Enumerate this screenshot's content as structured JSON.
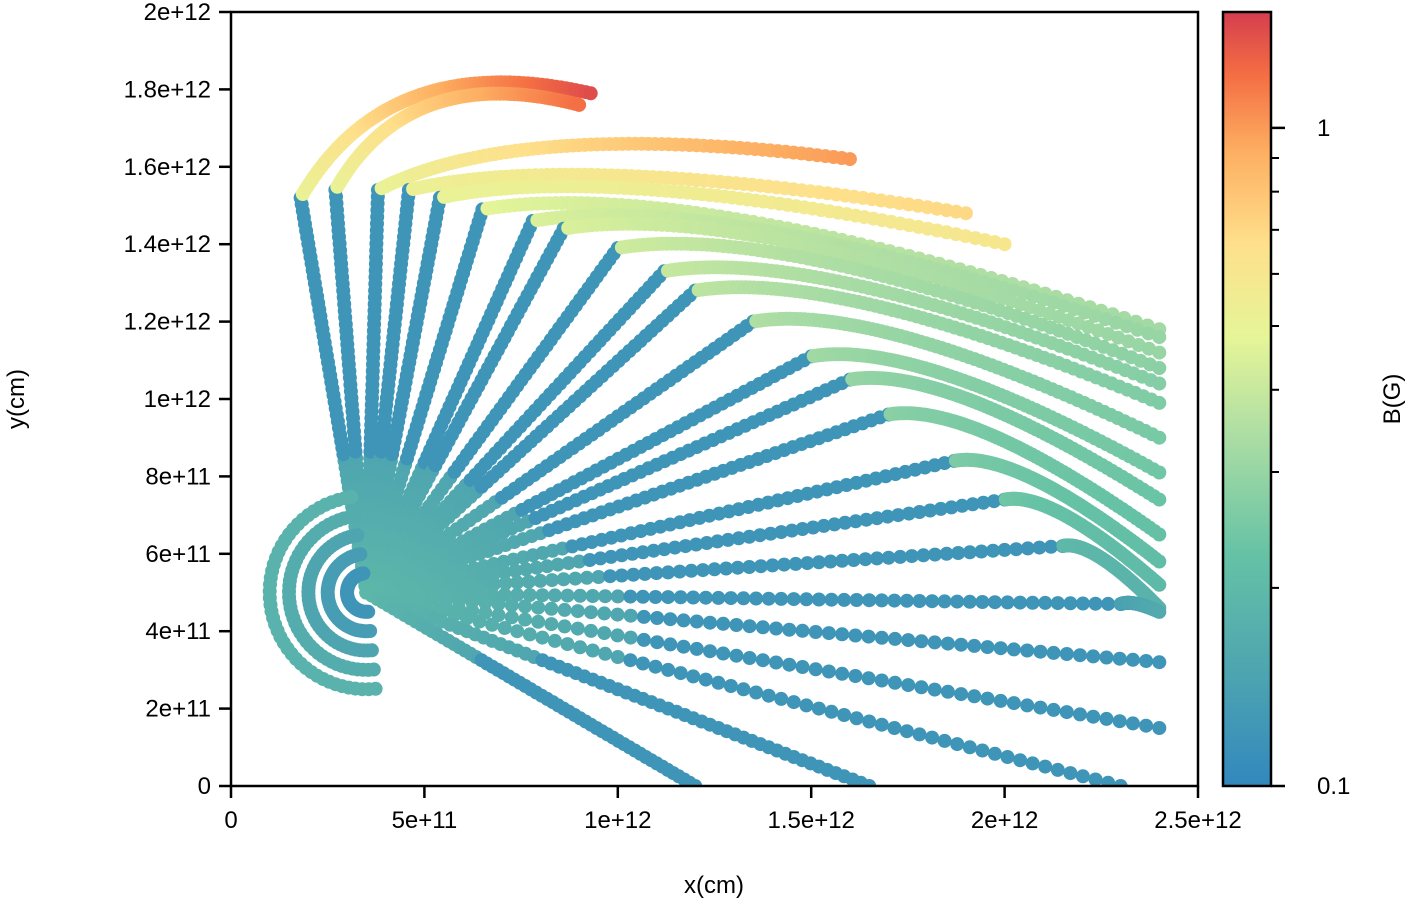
{
  "chart_data": {
    "type": "scatter",
    "title": "",
    "xlabel": "x(cm)",
    "ylabel": "y(cm)",
    "xlim": [
      0,
      2500000000000
    ],
    "ylim": [
      0,
      2000000000000
    ],
    "xticks": [
      0,
      500000000000,
      1000000000000,
      1500000000000,
      2000000000000,
      2500000000000
    ],
    "xtick_labels": [
      "0",
      "5e+11",
      "1e+12",
      "1.5e+12",
      "2e+12",
      "2.5e+12"
    ],
    "yticks": [
      0,
      200000000000,
      400000000000,
      600000000000,
      800000000000,
      1000000000000,
      1200000000000,
      1400000000000,
      1600000000000,
      1800000000000,
      2000000000000
    ],
    "ytick_labels": [
      "0",
      "2e+11",
      "4e+11",
      "6e+11",
      "8e+11",
      "1e+12",
      "1.2e+12",
      "1.4e+12",
      "1.6e+12",
      "1.8e+12",
      "2e+12"
    ],
    "grid": false,
    "colormap": "Spectral_r",
    "colorbar": {
      "label": "B(G)",
      "scale": "log",
      "range": [
        0.1,
        1.5
      ],
      "tick_labels": [
        "0.1",
        "1"
      ],
      "tick_values": [
        0.1,
        1
      ]
    },
    "source_center": [
      350000000000,
      500000000000
    ],
    "source_radius": 250000000000,
    "field_lines": [
      {
        "start": [
          180000000000,
          1520000000000
        ],
        "bend": [
          180000000000,
          1520000000000
        ],
        "end": [
          930000000000,
          1790000000000
        ],
        "b_start": 0.12,
        "b_bend": 0.5,
        "b_end": 1.4
      },
      {
        "start": [
          270000000000,
          1540000000000
        ],
        "bend": [
          270000000000,
          1540000000000
        ],
        "end": [
          900000000000,
          1760000000000
        ],
        "b_start": 0.12,
        "b_bend": 0.5,
        "b_end": 1.2
      },
      {
        "start": [
          380000000000,
          1540000000000
        ],
        "bend": [
          380000000000,
          1540000000000
        ],
        "end": [
          1600000000000,
          1620000000000
        ],
        "b_start": 0.12,
        "b_bend": 0.5,
        "b_end": 1.0
      },
      {
        "start": [
          460000000000,
          1540000000000
        ],
        "bend": [
          460000000000,
          1540000000000
        ],
        "end": [
          1900000000000,
          1480000000000
        ],
        "b_start": 0.12,
        "b_bend": 0.52,
        "b_end": 0.7
      },
      {
        "start": [
          540000000000,
          1520000000000
        ],
        "bend": [
          540000000000,
          1520000000000
        ],
        "end": [
          2000000000000,
          1400000000000
        ],
        "b_start": 0.12,
        "b_bend": 0.5,
        "b_end": 0.6
      },
      {
        "start": [
          650000000000,
          1490000000000
        ],
        "bend": [
          650000000000,
          1490000000000
        ],
        "end": [
          2400000000000,
          1180000000000
        ],
        "b_start": 0.12,
        "b_bend": 0.48,
        "b_end": 0.32
      },
      {
        "start": [
          780000000000,
          1460000000000
        ],
        "bend": [
          780000000000,
          1460000000000
        ],
        "end": [
          2400000000000,
          1160000000000
        ],
        "b_start": 0.12,
        "b_bend": 0.45,
        "b_end": 0.3
      },
      {
        "start": [
          860000000000,
          1440000000000
        ],
        "bend": [
          860000000000,
          1440000000000
        ],
        "end": [
          2400000000000,
          1120000000000
        ],
        "b_start": 0.12,
        "b_bend": 0.45,
        "b_end": 0.3
      },
      {
        "start": [
          1000000000000,
          1390000000000
        ],
        "bend": [
          1000000000000,
          1390000000000
        ],
        "end": [
          2400000000000,
          1080000000000
        ],
        "b_start": 0.12,
        "b_bend": 0.42,
        "b_end": 0.28
      },
      {
        "start": [
          1120000000000,
          1330000000000
        ],
        "bend": [
          1120000000000,
          1330000000000
        ],
        "end": [
          2400000000000,
          1040000000000
        ],
        "b_start": 0.12,
        "b_bend": 0.4,
        "b_end": 0.27
      },
      {
        "start": [
          1200000000000,
          1280000000000
        ],
        "bend": [
          1200000000000,
          1280000000000
        ],
        "end": [
          2400000000000,
          990000000000
        ],
        "b_start": 0.12,
        "b_bend": 0.38,
        "b_end": 0.26
      },
      {
        "start": [
          1350000000000,
          1200000000000
        ],
        "bend": [
          1350000000000,
          1200000000000
        ],
        "end": [
          2400000000000,
          900000000000
        ],
        "b_start": 0.12,
        "b_bend": 0.35,
        "b_end": 0.25
      },
      {
        "start": [
          1500000000000,
          1110000000000
        ],
        "bend": [
          1500000000000,
          1110000000000
        ],
        "end": [
          2400000000000,
          810000000000
        ],
        "b_start": 0.12,
        "b_bend": 0.32,
        "b_end": 0.24
      },
      {
        "start": [
          1600000000000,
          1050000000000
        ],
        "bend": [
          1600000000000,
          1050000000000
        ],
        "end": [
          2400000000000,
          740000000000
        ],
        "b_start": 0.12,
        "b_bend": 0.3,
        "b_end": 0.23
      },
      {
        "start": [
          1700000000000,
          960000000000
        ],
        "bend": [
          1700000000000,
          960000000000
        ],
        "end": [
          2400000000000,
          650000000000
        ],
        "b_start": 0.12,
        "b_bend": 0.28,
        "b_end": 0.22
      },
      {
        "start": [
          1870000000000,
          840000000000
        ],
        "bend": [
          1870000000000,
          840000000000
        ],
        "end": [
          2400000000000,
          580000000000
        ],
        "b_start": 0.12,
        "b_bend": 0.26,
        "b_end": 0.21
      },
      {
        "start": [
          2000000000000,
          740000000000
        ],
        "bend": [
          2000000000000,
          740000000000
        ],
        "end": [
          2400000000000,
          520000000000
        ],
        "b_start": 0.12,
        "b_bend": 0.24,
        "b_end": 0.2
      },
      {
        "start": [
          2150000000000,
          620000000000
        ],
        "bend": [
          2150000000000,
          620000000000
        ],
        "end": [
          2400000000000,
          460000000000
        ],
        "b_start": 0.12,
        "b_bend": 0.2,
        "b_end": 0.18
      },
      {
        "start": [
          2300000000000,
          470000000000
        ],
        "bend": [
          2300000000000,
          470000000000
        ],
        "end": [
          2400000000000,
          450000000000
        ],
        "b_start": 0.12,
        "b_bend": 0.14,
        "b_end": 0.16
      },
      {
        "start": [
          2400000000000,
          320000000000
        ],
        "bend": [
          2400000000000,
          320000000000
        ],
        "end": [
          2400000000000,
          320000000000
        ],
        "b_start": 0.12,
        "b_bend": 0.12,
        "b_end": 0.12
      },
      {
        "start": [
          2400000000000,
          150000000000
        ],
        "bend": [
          2400000000000,
          150000000000
        ],
        "end": [
          2400000000000,
          150000000000
        ],
        "b_start": 0.12,
        "b_bend": 0.12,
        "b_end": 0.12
      },
      {
        "start": [
          2300000000000,
          0
        ],
        "bend": [
          2300000000000,
          0
        ],
        "end": [
          2300000000000,
          0
        ],
        "b_start": 0.12,
        "b_bend": 0.12,
        "b_end": 0.12
      },
      {
        "start": [
          1650000000000,
          0
        ],
        "bend": [
          1650000000000,
          0
        ],
        "end": [
          1650000000000,
          0
        ],
        "b_start": 0.12,
        "b_bend": 0.12,
        "b_end": 0.12
      },
      {
        "start": [
          1200000000000,
          0
        ],
        "bend": [
          1200000000000,
          0
        ],
        "end": [
          1200000000000,
          0
        ],
        "b_start": 0.12,
        "b_bend": 0.12,
        "b_end": 0.12
      }
    ]
  }
}
